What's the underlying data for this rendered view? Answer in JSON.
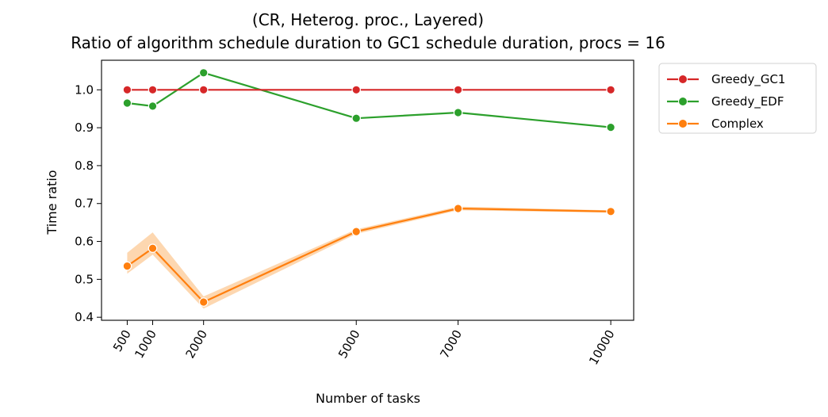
{
  "chart_data": {
    "type": "line",
    "title": "(CR, Heterog. proc., Layered)",
    "subtitle": "Ratio of algorithm schedule duration to GC1 schedule duration, procs = 16",
    "xlabel": "Number of tasks",
    "ylabel": "Time ratio",
    "x": [
      500,
      1000,
      2000,
      5000,
      7000,
      10000
    ],
    "x_tick_labels": [
      "500",
      "1000",
      "2000",
      "5000",
      "7000",
      "10000"
    ],
    "xlim": [
      -5,
      10450
    ],
    "ylim": [
      0.392,
      1.078
    ],
    "y_ticks": [
      0.4,
      0.5,
      0.6,
      0.7,
      0.8,
      0.9,
      1.0
    ],
    "y_tick_labels": [
      "0.4",
      "0.5",
      "0.6",
      "0.7",
      "0.8",
      "0.9",
      "1.0"
    ],
    "grid": false,
    "legend_position": "outside-right-top",
    "series": [
      {
        "name": "Greedy_GC1",
        "color": "#d62728",
        "values": [
          1.0,
          1.0,
          1.0,
          1.0,
          1.0,
          1.0
        ]
      },
      {
        "name": "Greedy_EDF",
        "color": "#2ca02c",
        "values": [
          0.965,
          0.957,
          1.045,
          0.925,
          0.94,
          0.901
        ]
      },
      {
        "name": "Complex",
        "color": "#ff7f0e",
        "values": [
          0.535,
          0.582,
          0.44,
          0.626,
          0.687,
          0.679
        ],
        "band_lower": [
          0.515,
          0.565,
          0.423,
          0.62,
          0.682,
          0.676
        ],
        "band_upper": [
          0.57,
          0.624,
          0.455,
          0.632,
          0.692,
          0.682
        ],
        "band_color": "#fdd0a2"
      }
    ]
  }
}
